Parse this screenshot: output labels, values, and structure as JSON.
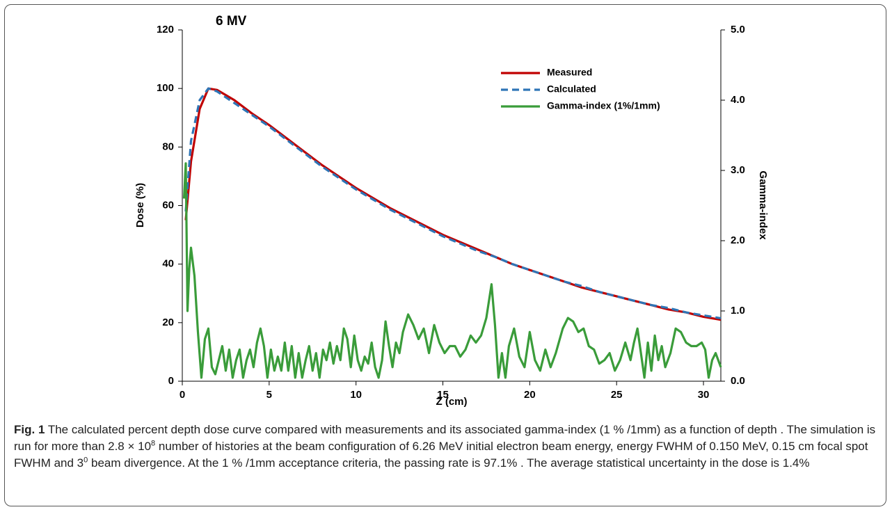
{
  "chart_data": {
    "type": "line",
    "title": "6 MV",
    "xlabel": "Z (cm)",
    "ylabel": "Dose (%)",
    "y2label": "Gamma-index",
    "xlim": [
      0,
      31
    ],
    "xticks": [
      0,
      5,
      10,
      15,
      20,
      25,
      30
    ],
    "ylim": [
      0,
      120
    ],
    "yticks": [
      0,
      20,
      40,
      60,
      80,
      100,
      120
    ],
    "y2lim": [
      0,
      5
    ],
    "y2ticks": [
      {
        "value": 0,
        "label": "0.0"
      },
      {
        "value": 1,
        "label": "1.0"
      },
      {
        "value": 2,
        "label": "2.0"
      },
      {
        "value": 3,
        "label": "3.0"
      },
      {
        "value": 4,
        "label": "4.0"
      },
      {
        "value": 5,
        "label": "5.0"
      }
    ],
    "legend": "upper right",
    "series": [
      {
        "name": "Measured",
        "color": "#c00000",
        "dash": false,
        "x": [
          0.2,
          0.5,
          1.0,
          1.5,
          2,
          3,
          4,
          5,
          6,
          7,
          8,
          9,
          10,
          11,
          12,
          13,
          14,
          15,
          16,
          17,
          18,
          19,
          20,
          21,
          22,
          23,
          24,
          25,
          26,
          27,
          28,
          29,
          30,
          31
        ],
        "values": [
          55,
          75,
          93,
          100,
          99.5,
          96,
          91.5,
          87.5,
          83,
          78.5,
          74,
          70,
          66,
          62.5,
          59,
          56,
          53,
          50,
          47.5,
          45,
          42.5,
          40,
          38,
          36,
          34,
          32,
          30.5,
          29,
          27.5,
          26,
          24.5,
          23.5,
          22,
          21
        ]
      },
      {
        "name": "Calculated",
        "color": "#2e75b6",
        "dash": true,
        "x": [
          0.2,
          0.5,
          1.0,
          1.5,
          2,
          3,
          4,
          5,
          6,
          7,
          8,
          9,
          10,
          11,
          12,
          13,
          14,
          15,
          16,
          17,
          18,
          19,
          20,
          21,
          22,
          23,
          24,
          25,
          26,
          27,
          28,
          29,
          30,
          31
        ],
        "values": [
          58,
          82,
          96,
          100,
          99,
          95,
          91,
          87,
          82.5,
          78,
          73.5,
          69.5,
          65.5,
          62,
          58.5,
          55.5,
          52.5,
          49.5,
          47,
          44.5,
          42.5,
          40,
          38,
          36,
          34,
          32.5,
          30.5,
          29,
          27.5,
          26,
          25,
          23.5,
          22.5,
          21.5
        ]
      },
      {
        "name": "Gamma-index (1%/1mm)",
        "color": "#3a9c3a",
        "dash": false,
        "axis": "y2",
        "x": [
          0.1,
          0.2,
          0.3,
          0.4,
          0.5,
          0.7,
          0.9,
          1.1,
          1.3,
          1.5,
          1.7,
          1.9,
          2.1,
          2.3,
          2.5,
          2.7,
          2.9,
          3.1,
          3.3,
          3.5,
          3.7,
          3.9,
          4.1,
          4.3,
          4.5,
          4.7,
          4.9,
          5.1,
          5.3,
          5.5,
          5.7,
          5.9,
          6.1,
          6.3,
          6.5,
          6.7,
          6.9,
          7.1,
          7.3,
          7.5,
          7.7,
          7.9,
          8.1,
          8.3,
          8.5,
          8.7,
          8.9,
          9.1,
          9.3,
          9.5,
          9.7,
          9.9,
          10.1,
          10.3,
          10.5,
          10.7,
          10.9,
          11.1,
          11.3,
          11.5,
          11.7,
          11.9,
          12.1,
          12.3,
          12.5,
          12.7,
          13.0,
          13.3,
          13.6,
          13.9,
          14.2,
          14.5,
          14.8,
          15.1,
          15.4,
          15.7,
          16.0,
          16.3,
          16.6,
          16.9,
          17.2,
          17.5,
          17.8,
          18.0,
          18.2,
          18.4,
          18.6,
          18.8,
          19.1,
          19.4,
          19.7,
          20.0,
          20.3,
          20.6,
          20.9,
          21.2,
          21.5,
          21.9,
          22.2,
          22.5,
          22.8,
          23.1,
          23.4,
          23.7,
          24.0,
          24.3,
          24.6,
          24.9,
          25.2,
          25.5,
          25.8,
          26.0,
          26.2,
          26.4,
          26.6,
          26.8,
          27.0,
          27.2,
          27.4,
          27.6,
          27.8,
          28.1,
          28.4,
          28.7,
          29.0,
          29.3,
          29.6,
          29.9,
          30.1,
          30.3,
          30.5,
          30.7,
          31.0
        ],
        "values": [
          2.6,
          3.1,
          1.0,
          1.6,
          1.9,
          1.5,
          0.7,
          0.05,
          0.6,
          0.75,
          0.2,
          0.1,
          0.3,
          0.5,
          0.15,
          0.45,
          0.05,
          0.3,
          0.45,
          0.05,
          0.3,
          0.45,
          0.2,
          0.55,
          0.75,
          0.5,
          0.05,
          0.45,
          0.15,
          0.35,
          0.15,
          0.55,
          0.15,
          0.5,
          0.05,
          0.4,
          0.05,
          0.3,
          0.5,
          0.15,
          0.4,
          0.05,
          0.45,
          0.3,
          0.55,
          0.25,
          0.5,
          0.3,
          0.75,
          0.6,
          0.2,
          0.65,
          0.3,
          0.15,
          0.35,
          0.25,
          0.55,
          0.2,
          0.05,
          0.3,
          0.85,
          0.5,
          0.2,
          0.55,
          0.4,
          0.7,
          0.95,
          0.8,
          0.6,
          0.75,
          0.4,
          0.8,
          0.55,
          0.4,
          0.5,
          0.5,
          0.35,
          0.45,
          0.65,
          0.55,
          0.65,
          0.9,
          1.38,
          0.8,
          0.05,
          0.4,
          0.05,
          0.5,
          0.75,
          0.35,
          0.2,
          0.7,
          0.3,
          0.15,
          0.45,
          0.2,
          0.4,
          0.75,
          0.9,
          0.85,
          0.7,
          0.75,
          0.5,
          0.45,
          0.25,
          0.3,
          0.4,
          0.15,
          0.3,
          0.55,
          0.3,
          0.55,
          0.75,
          0.4,
          0.05,
          0.55,
          0.15,
          0.65,
          0.3,
          0.5,
          0.2,
          0.4,
          0.75,
          0.7,
          0.55,
          0.5,
          0.5,
          0.55,
          0.45,
          0.05,
          0.3,
          0.4,
          0.2
        ]
      }
    ]
  },
  "caption": {
    "label": "Fig. 1",
    "segments": [
      " The calculated percent depth dose curve compared with measurements and its associated gamma-index (1 % /1mm) as a function of depth . The simulation is run for more than 2.8 × 10",
      "8",
      " number of histories at the beam configuration of 6.26 MeV initial electron beam energy, energy FWHM of 0.150 MeV, 0.15 cm focal spot FWHM and 3",
      "0",
      " beam divergence. At the 1 % /1mm acceptance criteria, the passing rate is 97.1% . The average statistical uncertainty in the dose is 1.4%"
    ]
  }
}
